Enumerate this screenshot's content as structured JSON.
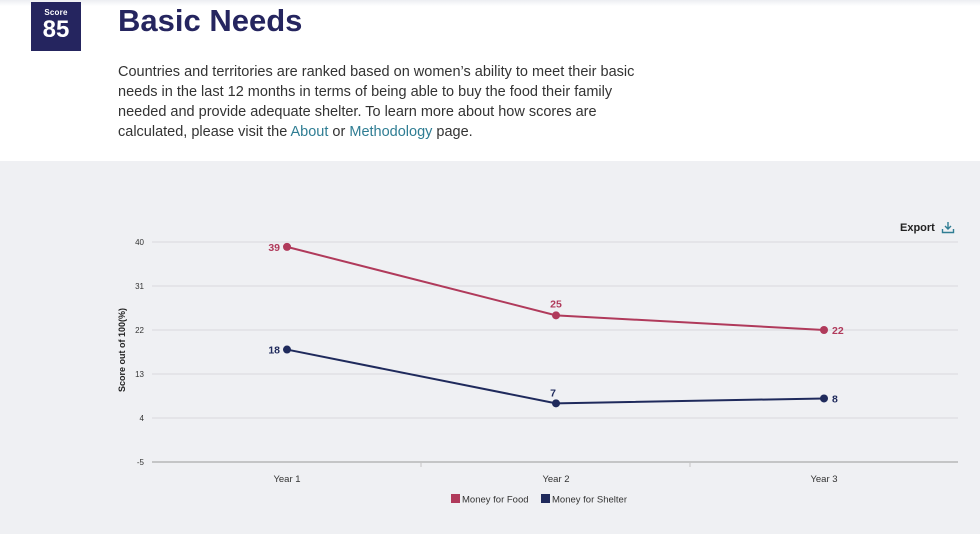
{
  "header": {
    "score_label": "Score",
    "score_value": "85",
    "title": "Basic Needs",
    "intro_text": "Countries and territories are ranked based on women’s ability to meet their basic needs in the last 12 months in terms of being able to buy the food their family needed and provide adequate shelter. To learn more about how scores are calculated, please visit the ",
    "about_link": "About",
    "or_text": " or ",
    "methodology_link": "Methodology",
    "page_text": " page."
  },
  "toolbar": {
    "export_label": "Export"
  },
  "colors": {
    "food": "#b03a5b",
    "shelter": "#1f2a5c",
    "brand": "#25255f",
    "link": "#2f7d93"
  },
  "chart_data": {
    "type": "line",
    "title": "",
    "xlabel": "",
    "ylabel": "Score out of 100(%)",
    "categories": [
      "Year 1",
      "Year 2",
      "Year 3"
    ],
    "yticks": [
      -5,
      4,
      13,
      22,
      31,
      40
    ],
    "ylim": [
      -5,
      40
    ],
    "series": [
      {
        "name": "Money for Food",
        "color": "#b03a5b",
        "values": [
          39,
          25,
          22
        ]
      },
      {
        "name": "Money for Shelter",
        "color": "#1f2a5c",
        "values": [
          18,
          7,
          8
        ]
      }
    ],
    "legend_position": "bottom-center"
  }
}
